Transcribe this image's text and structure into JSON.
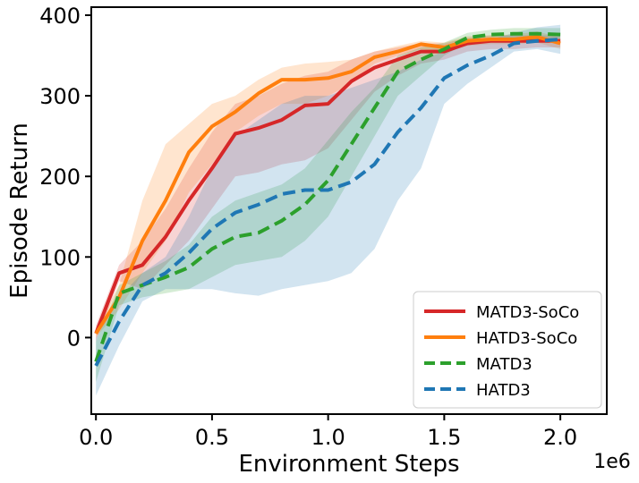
{
  "chart_data": {
    "type": "line",
    "title": "",
    "xlabel": "Environment Steps",
    "ylabel": "Episode Return",
    "x_offset_label": "1e6",
    "xlim": [
      -0.02,
      2.2
    ],
    "ylim": [
      -95,
      410
    ],
    "xticks": [
      0.0,
      0.5,
      1.0,
      1.5,
      2.0
    ],
    "xtick_labels": [
      "0.0",
      "0.5",
      "1.0",
      "1.5",
      "2.0"
    ],
    "yticks": [
      0,
      100,
      200,
      300,
      400
    ],
    "ytick_labels": [
      "0",
      "100",
      "200",
      "300",
      "400"
    ],
    "grid": false,
    "legend_position": "lower-right",
    "series": [
      {
        "name": "MATD3-SoCo",
        "color": "#d62728",
        "style": "solid",
        "x": [
          0.0,
          0.1,
          0.2,
          0.3,
          0.4,
          0.5,
          0.6,
          0.7,
          0.8,
          0.9,
          1.0,
          1.1,
          1.2,
          1.3,
          1.4,
          1.5,
          1.6,
          1.7,
          1.8,
          1.9,
          2.0
        ],
        "y": [
          5,
          80,
          90,
          125,
          170,
          210,
          253,
          260,
          270,
          288,
          290,
          318,
          335,
          345,
          355,
          355,
          365,
          368,
          368,
          368,
          368
        ],
        "lower": [
          -5,
          70,
          60,
          90,
          120,
          160,
          200,
          205,
          215,
          220,
          235,
          270,
          305,
          325,
          340,
          345,
          355,
          358,
          358,
          360,
          360
        ],
        "upper": [
          15,
          90,
          120,
          160,
          210,
          255,
          290,
          300,
          315,
          325,
          330,
          345,
          355,
          360,
          365,
          365,
          372,
          375,
          375,
          375,
          375
        ]
      },
      {
        "name": "HATD3-SoCo",
        "color": "#ff7f0e",
        "style": "solid",
        "x": [
          0.0,
          0.1,
          0.2,
          0.3,
          0.4,
          0.5,
          0.6,
          0.7,
          0.8,
          0.9,
          1.0,
          1.1,
          1.2,
          1.3,
          1.4,
          1.5,
          1.6,
          1.7,
          1.8,
          1.9,
          2.0
        ],
        "y": [
          5,
          50,
          120,
          170,
          230,
          262,
          280,
          303,
          320,
          320,
          322,
          330,
          348,
          355,
          364,
          360,
          368,
          370,
          370,
          373,
          365
        ],
        "lower": [
          0,
          35,
          80,
          120,
          180,
          215,
          255,
          275,
          290,
          290,
          300,
          315,
          340,
          350,
          358,
          355,
          362,
          364,
          364,
          366,
          358
        ],
        "upper": [
          10,
          65,
          170,
          240,
          265,
          290,
          300,
          320,
          335,
          340,
          342,
          345,
          355,
          362,
          368,
          366,
          374,
          375,
          376,
          380,
          372
        ]
      },
      {
        "name": "MATD3",
        "color": "#2ca02c",
        "style": "dashed",
        "x": [
          0.0,
          0.1,
          0.2,
          0.3,
          0.4,
          0.5,
          0.6,
          0.7,
          0.8,
          0.9,
          1.0,
          1.1,
          1.2,
          1.3,
          1.4,
          1.5,
          1.6,
          1.7,
          1.8,
          1.9,
          2.0
        ],
        "y": [
          -30,
          55,
          65,
          75,
          87,
          110,
          125,
          130,
          145,
          165,
          195,
          240,
          285,
          330,
          345,
          358,
          372,
          376,
          377,
          377,
          376
        ],
        "lower": [
          -55,
          40,
          50,
          55,
          60,
          75,
          90,
          95,
          100,
          120,
          150,
          200,
          250,
          300,
          325,
          350,
          366,
          370,
          370,
          370,
          368
        ],
        "upper": [
          -5,
          65,
          80,
          95,
          115,
          150,
          170,
          180,
          190,
          210,
          245,
          280,
          310,
          350,
          360,
          366,
          378,
          382,
          384,
          384,
          384
        ]
      },
      {
        "name": "HATD3",
        "color": "#1f77b4",
        "style": "dashed",
        "x": [
          0.0,
          0.1,
          0.2,
          0.3,
          0.4,
          0.5,
          0.6,
          0.7,
          0.8,
          0.9,
          1.0,
          1.1,
          1.2,
          1.3,
          1.4,
          1.5,
          1.6,
          1.7,
          1.8,
          1.9,
          2.0
        ],
        "y": [
          -35,
          20,
          65,
          80,
          105,
          135,
          155,
          165,
          178,
          183,
          183,
          193,
          215,
          255,
          285,
          322,
          338,
          350,
          365,
          368,
          370
        ],
        "lower": [
          -72,
          -10,
          45,
          60,
          60,
          60,
          55,
          52,
          60,
          65,
          70,
          80,
          110,
          170,
          210,
          290,
          315,
          335,
          355,
          358,
          352
        ],
        "upper": [
          0,
          50,
          80,
          100,
          150,
          210,
          250,
          270,
          290,
          300,
          300,
          310,
          320,
          330,
          345,
          355,
          365,
          370,
          378,
          385,
          388
        ]
      }
    ]
  }
}
